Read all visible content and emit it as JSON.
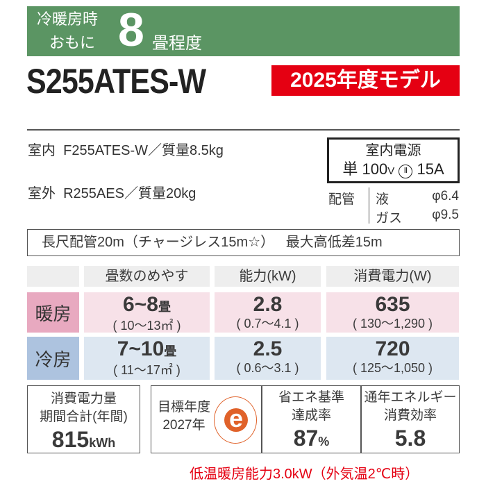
{
  "banner": {
    "line1": "冷暖房時",
    "line2": "おもに",
    "tatami": "8",
    "unit": "畳程度"
  },
  "model": "S255ATES-W",
  "year_badge": "2025年度モデル",
  "indoor": "室内  F255ATES-W／質量8.5kg",
  "outdoor": "室外  R255AES／質量20kg",
  "power": {
    "title": "室内電源",
    "value": "単 100V ⓘⓘ 15A",
    "phase": "単",
    "volt": "100",
    "volt_unit": "V",
    "plug": "Ⅱ",
    "amp": "15A"
  },
  "piping": {
    "label": "配管",
    "liquid_label": "液",
    "liquid": "φ6.4",
    "gas_label": "ガス",
    "gas": "φ9.5"
  },
  "long_pipe": "長尺配管20m（チャージレス15m☆）   最大高低差15m",
  "table": {
    "headers": [
      "畳数のめやす",
      "能力(kW)",
      "消費電力(W)"
    ],
    "rows": [
      {
        "label": "暖房",
        "tatami": "6~8",
        "tatami_unit": "畳",
        "area": "( 10〜13㎡ )",
        "capacity": "2.8",
        "capacity_range": "( 0.7〜4.1 )",
        "power": "635",
        "power_range": "( 130〜1,290 )"
      },
      {
        "label": "冷房",
        "tatami": "7~10",
        "tatami_unit": "畳",
        "area": "( 11〜17㎡ )",
        "capacity": "2.5",
        "capacity_range": "( 0.6〜3.1 )",
        "power": "720",
        "power_range": "( 125〜1,050 )"
      }
    ]
  },
  "annual": {
    "line1": "消費電力量",
    "line2": "期間合計(年間)",
    "value": "815",
    "unit": "kWh"
  },
  "target": {
    "line1": "目標年度",
    "line2": "2027年",
    "logo": "e-mark-icon"
  },
  "achievement": {
    "line1": "省エネ基準",
    "line2": "達成率",
    "value": "87",
    "unit": "%"
  },
  "apf": {
    "line1": "通年エネルギー",
    "line2": "消費効率",
    "value": "5.8"
  },
  "note": "低温暖房能力3.0kW（外気温2℃時）",
  "colors": {
    "banner": "#5b9563",
    "badge": "#e50012",
    "heat": "#f7e1e8",
    "heat_label": "#e8a9c0",
    "cool": "#dde7f1",
    "cool_label": "#adc3df",
    "logo": "#e0622a"
  }
}
